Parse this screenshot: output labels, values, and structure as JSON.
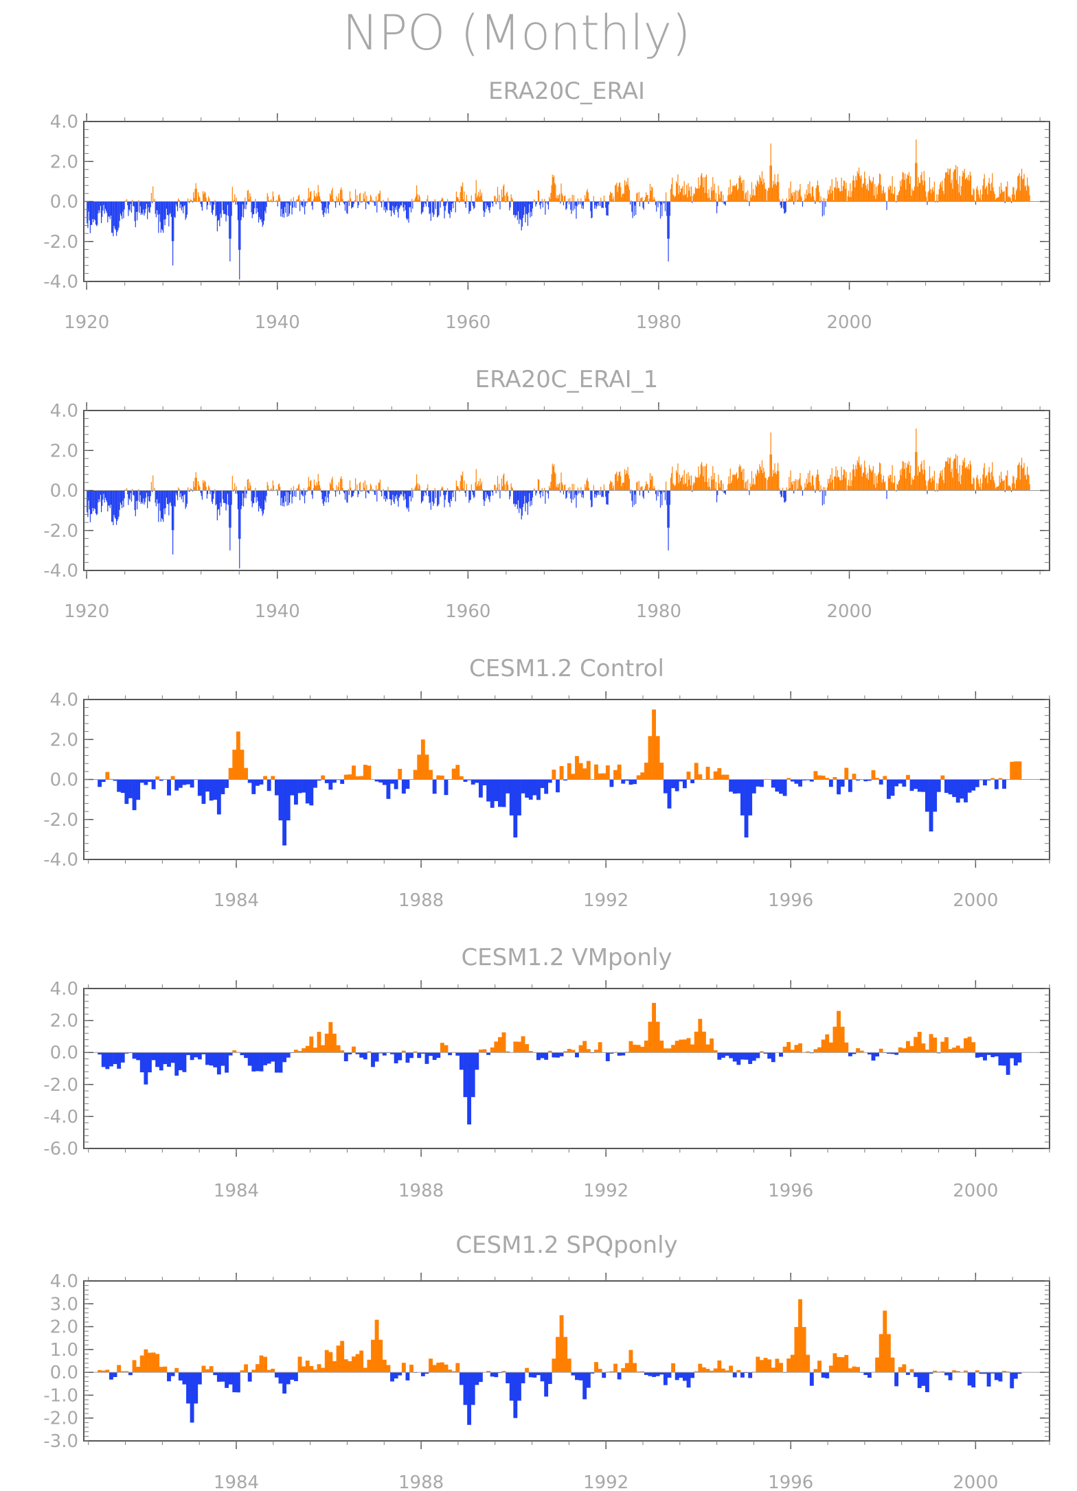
{
  "figure": {
    "title": "NPO (Monthly)"
  },
  "colors": {
    "positive": "#ff8000",
    "negative": "#1f3ff2",
    "frame": "#555555",
    "text": "#a8a8a8"
  },
  "chart_data": [
    {
      "type": "area",
      "title": "ERA20C_ERAI",
      "ylim": [
        -4.0,
        4.0
      ],
      "yticks": [
        "4.0",
        "2.0",
        "0.0",
        "-2.0",
        "-4.0"
      ],
      "yticks_values": [
        4,
        2,
        0,
        -2,
        -4
      ],
      "xlim": [
        1919.7,
        2021.0
      ],
      "xticks": [
        "1920",
        "1940",
        "1960",
        "1980",
        "2000"
      ],
      "xticks_values": [
        1920,
        1940,
        1960,
        1980,
        2000
      ],
      "x_start": 1920,
      "step": 0.0833,
      "n": 1188,
      "seed": 11,
      "trend": [
        -0.7,
        0.9
      ],
      "scale": 0.95,
      "extremes": [
        [
          1936.0,
          -3.9
        ],
        [
          1929.0,
          -3.2
        ],
        [
          1935.0,
          -3.0
        ],
        [
          1991.7,
          2.9
        ],
        [
          2007.0,
          3.1
        ],
        [
          1981.0,
          -3.0
        ]
      ],
      "grid": false
    },
    {
      "type": "area",
      "title": "ERA20C_ERAI_1",
      "ylim": [
        -4.0,
        4.0
      ],
      "yticks": [
        "4.0",
        "2.0",
        "0.0",
        "-2.0",
        "-4.0"
      ],
      "yticks_values": [
        4,
        2,
        0,
        -2,
        -4
      ],
      "xlim": [
        1919.7,
        2021.0
      ],
      "xticks": [
        "1920",
        "1940",
        "1960",
        "1980",
        "2000"
      ],
      "xticks_values": [
        1920,
        1940,
        1960,
        1980,
        2000
      ],
      "x_start": 1920,
      "step": 0.0833,
      "n": 1188,
      "seed": 11,
      "trend": [
        -0.7,
        0.9
      ],
      "scale": 0.95,
      "extremes": [
        [
          1936.0,
          -3.9
        ],
        [
          1929.0,
          -3.2
        ],
        [
          1935.0,
          -3.0
        ],
        [
          1991.7,
          2.9
        ],
        [
          2007.0,
          3.1
        ],
        [
          1981.0,
          -3.0
        ]
      ],
      "grid": false
    },
    {
      "type": "area",
      "title": "CESM1.2 Control",
      "ylim": [
        -4.0,
        4.0
      ],
      "yticks": [
        "4.0",
        "2.0",
        "0.0",
        "-2.0",
        "-4.0"
      ],
      "yticks_values": [
        4,
        2,
        0,
        -2,
        -4
      ],
      "xlim": [
        1980.7,
        2001.6
      ],
      "xticks": [
        "1984",
        "1988",
        "1992",
        "1996",
        "2000"
      ],
      "xticks_values": [
        1984,
        1988,
        1992,
        1996,
        2000
      ],
      "x_start": 1981.0,
      "step": 0.0833,
      "n": 240,
      "seed": 23,
      "trend": [
        0,
        0
      ],
      "scale": 1.1,
      "extremes": [
        [
          1984.0,
          2.4
        ],
        [
          1985.0,
          -3.3
        ],
        [
          1990.0,
          -2.9
        ],
        [
          1993.0,
          3.5
        ],
        [
          1995.0,
          -2.9
        ],
        [
          1999.0,
          -2.6
        ],
        [
          1988.0,
          2.0
        ]
      ],
      "grid": false
    },
    {
      "type": "area",
      "title": "CESM1.2 VMponly",
      "ylim": [
        -6.0,
        4.0
      ],
      "yticks": [
        "4.0",
        "2.0",
        "0.0",
        "-2.0",
        "-4.0",
        "-6.0"
      ],
      "yticks_values": [
        4,
        2,
        0,
        -2,
        -4,
        -6
      ],
      "xlim": [
        1980.7,
        2001.6
      ],
      "xticks": [
        "1984",
        "1988",
        "1992",
        "1996",
        "2000"
      ],
      "xticks_values": [
        1984,
        1988,
        1992,
        1996,
        2000
      ],
      "x_start": 1981.0,
      "step": 0.0833,
      "n": 240,
      "seed": 37,
      "trend": [
        0,
        0
      ],
      "scale": 1.05,
      "extremes": [
        [
          1989.0,
          -4.5
        ],
        [
          1993.0,
          3.1
        ],
        [
          1997.0,
          2.6
        ],
        [
          1994.0,
          2.1
        ],
        [
          1982.0,
          -2.0
        ],
        [
          1986.0,
          1.9
        ]
      ],
      "grid": false
    },
    {
      "type": "area",
      "title": "CESM1.2 SPQponly",
      "ylim": [
        -3.0,
        4.0
      ],
      "yticks": [
        "4.0",
        "3.0",
        "2.0",
        "1.0",
        "0.0",
        "-1.0",
        "-2.0",
        "-3.0"
      ],
      "yticks_values": [
        4,
        3,
        2,
        1,
        0,
        -1,
        -2,
        -3
      ],
      "xlim": [
        1980.7,
        2001.6
      ],
      "xticks": [
        "1984",
        "1988",
        "1992",
        "1996",
        "2000"
      ],
      "xticks_values": [
        1984,
        1988,
        1992,
        1996,
        2000
      ],
      "x_start": 1981.0,
      "step": 0.0833,
      "n": 240,
      "seed": 51,
      "trend": [
        0,
        0
      ],
      "scale": 0.95,
      "extremes": [
        [
          1996.2,
          3.2
        ],
        [
          1989.0,
          -2.3
        ],
        [
          1983.0,
          -2.2
        ],
        [
          1998.0,
          2.7
        ],
        [
          1987.0,
          2.3
        ],
        [
          1991.0,
          2.5
        ],
        [
          1990.0,
          -2.0
        ]
      ],
      "grid": false
    }
  ]
}
